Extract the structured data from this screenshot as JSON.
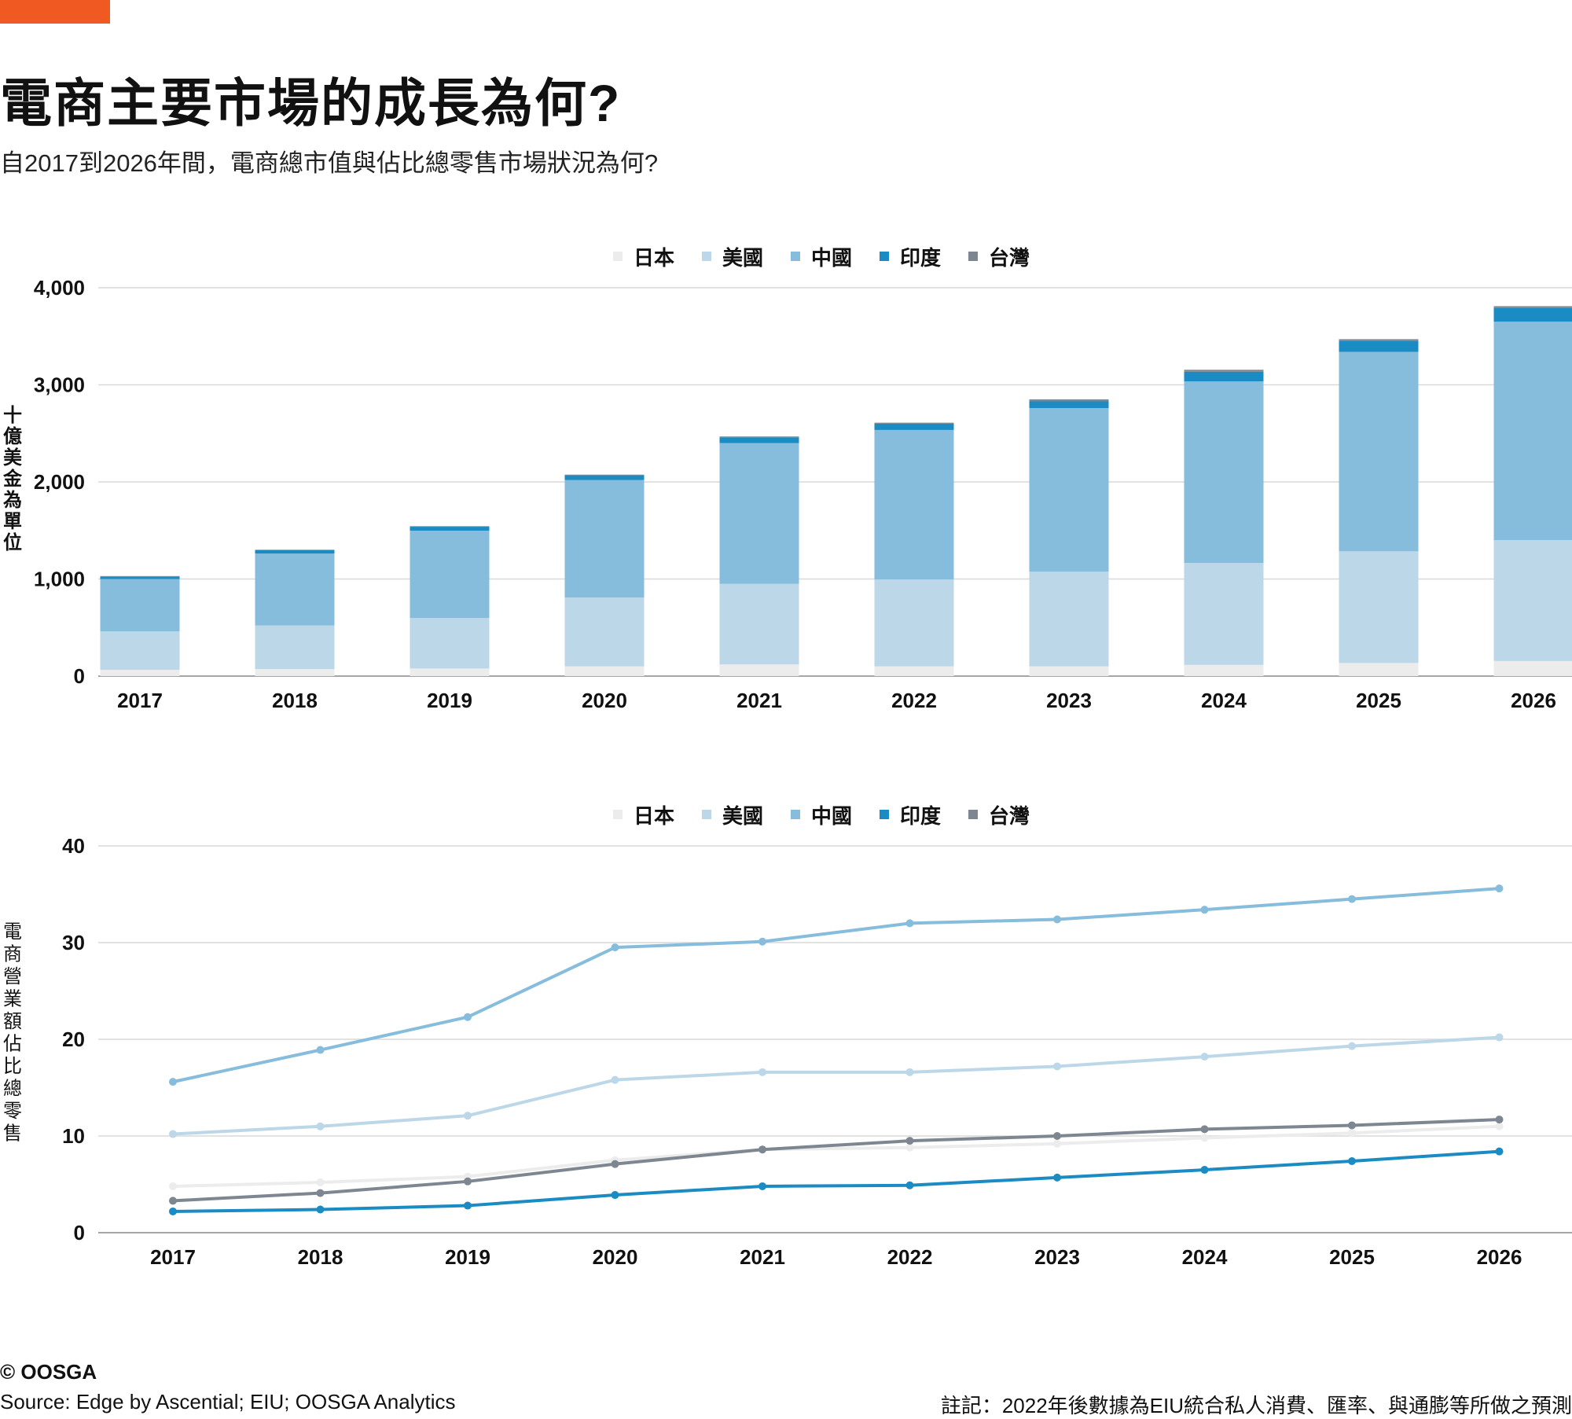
{
  "header": {
    "title": "電商主要市場的成長為何?",
    "subtitle": "自2017到2026年間，電商總市值與佔比總零售市場狀況為何?"
  },
  "footer": {
    "copyright": "© OOSGA",
    "source": "Source:  Edge by Ascential; EIU; OOSGA Analytics",
    "note": "註記：2022年後數據為EIU統合私人消費、匯率、與通膨等所做之預測"
  },
  "colors": {
    "accent": "#f05a22",
    "日本": "#ececec",
    "美國": "#bcd7e8",
    "中國": "#86bcdc",
    "印度": "#1a8bc3",
    "台灣": "#7e8791",
    "grid": "#d9d9d9",
    "axis": "#888888"
  },
  "chart_data": [
    {
      "type": "bar",
      "stacked": true,
      "legend_position": "top-center",
      "ylabel": "十億美金為單位",
      "ylim": [
        0,
        4000
      ],
      "yticks": [
        "0",
        "1,000",
        "2,000",
        "3,000",
        "4,000"
      ],
      "grid": true,
      "categories": [
        "2017",
        "2018",
        "2019",
        "2020",
        "2021",
        "2022",
        "2023",
        "2024",
        "2025",
        "2026"
      ],
      "series": [
        {
          "name": "日本",
          "values": [
            65,
            72,
            78,
            100,
            120,
            100,
            100,
            115,
            135,
            155
          ]
        },
        {
          "name": "美國",
          "values": [
            395,
            450,
            520,
            710,
            830,
            895,
            975,
            1050,
            1150,
            1245
          ]
        },
        {
          "name": "中國",
          "values": [
            540,
            740,
            900,
            1210,
            1450,
            1540,
            1685,
            1870,
            2055,
            2250
          ]
        },
        {
          "name": "印度",
          "values": [
            25,
            35,
            40,
            48,
            60,
            65,
            70,
            100,
            110,
            140
          ]
        },
        {
          "name": "台灣",
          "values": [
            5,
            5,
            6,
            7,
            8,
            10,
            20,
            20,
            20,
            20
          ]
        }
      ]
    },
    {
      "type": "line",
      "legend_position": "top-center",
      "ylabel": "電商營業額佔比總零售",
      "ylim": [
        0,
        40
      ],
      "yticks": [
        "0",
        "10",
        "20",
        "30",
        "40"
      ],
      "grid": true,
      "x": [
        "2017",
        "2018",
        "2019",
        "2020",
        "2021",
        "2022",
        "2023",
        "2024",
        "2025",
        "2026"
      ],
      "series": [
        {
          "name": "日本",
          "values": [
            4.8,
            5.2,
            5.8,
            7.5,
            8.6,
            8.8,
            9.2,
            9.8,
            10.3,
            11.0
          ]
        },
        {
          "name": "美國",
          "values": [
            10.2,
            11.0,
            12.1,
            15.8,
            16.6,
            16.6,
            17.2,
            18.2,
            19.3,
            20.2
          ]
        },
        {
          "name": "中國",
          "values": [
            15.6,
            18.9,
            22.3,
            29.5,
            30.1,
            32.0,
            32.4,
            33.4,
            34.5,
            35.6
          ]
        },
        {
          "name": "印度",
          "values": [
            2.2,
            2.4,
            2.8,
            3.9,
            4.8,
            4.9,
            5.7,
            6.5,
            7.4,
            8.4
          ]
        },
        {
          "name": "台灣",
          "values": [
            3.3,
            4.1,
            5.3,
            7.1,
            8.6,
            9.5,
            10.0,
            10.7,
            11.1,
            11.7
          ]
        }
      ]
    }
  ]
}
